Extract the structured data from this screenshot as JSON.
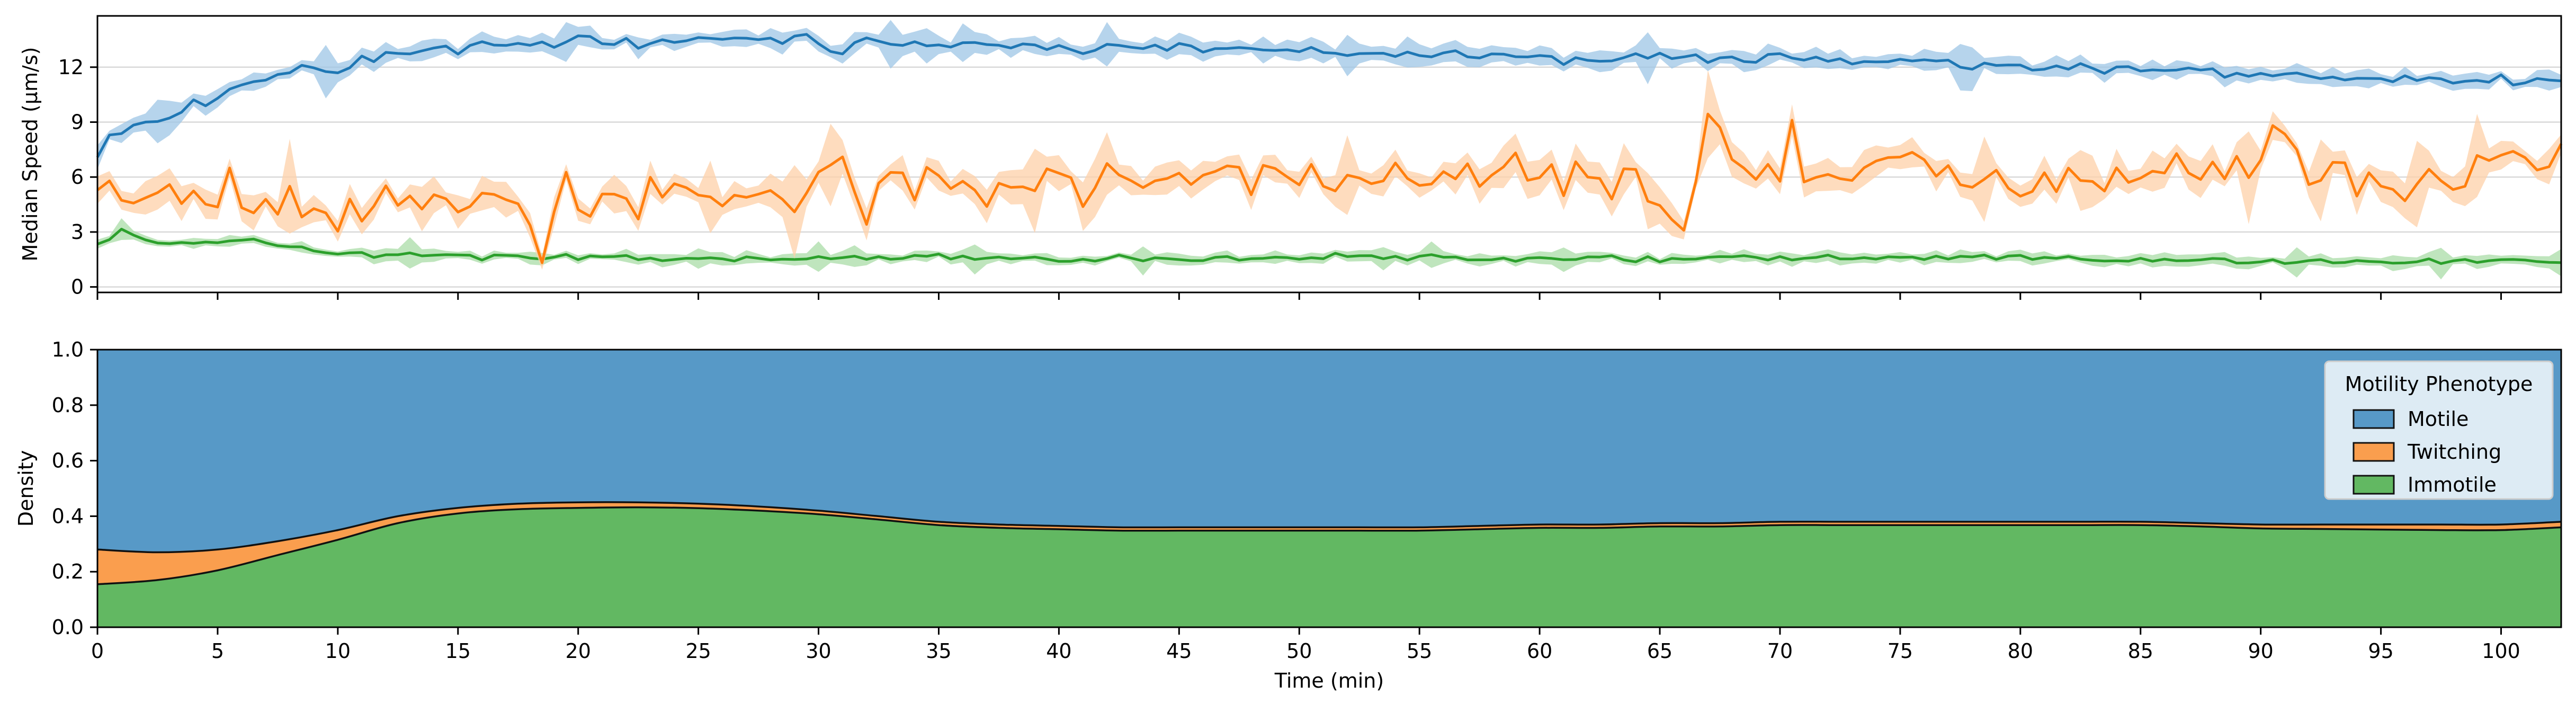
{
  "chart_data": [
    {
      "type": "line",
      "title": "",
      "xlabel": "",
      "ylabel": "Median Speed (µm/s)",
      "xlim": [
        0,
        102.5
      ],
      "ylim": [
        -0.3,
        14.8
      ],
      "xticks": [
        0,
        5,
        10,
        15,
        20,
        25,
        30,
        35,
        40,
        45,
        50,
        55,
        60,
        65,
        70,
        75,
        80,
        85,
        90,
        95,
        100
      ],
      "xticklabels_visible": false,
      "yticks": [
        0,
        3,
        6,
        9,
        12
      ],
      "yticklabels": [
        "0",
        "3",
        "6",
        "9",
        "12"
      ],
      "grid": "horizontal",
      "legend": "none",
      "series": [
        {
          "color": "#1f77b4",
          "band_color": "#9ec6e6",
          "band_halfwidth": 0.4,
          "knots_x": [
            0,
            0.5,
            1.5,
            2.5,
            4,
            5,
            6,
            7,
            8,
            9,
            10,
            11,
            12,
            13,
            14,
            15,
            17,
            19,
            20,
            22,
            24,
            25,
            27,
            29,
            29.5,
            30.5,
            32,
            34,
            36,
            38,
            40,
            42,
            45,
            48,
            50,
            52,
            55,
            58,
            60,
            62,
            65,
            68,
            70,
            72,
            75,
            78,
            80,
            82,
            85,
            88,
            90,
            92,
            95,
            98,
            100,
            102.5
          ],
          "knots_y": [
            7.2,
            8.2,
            8.9,
            9.2,
            9.8,
            10.4,
            11.0,
            11.5,
            11.9,
            12.1,
            11.8,
            12.3,
            12.6,
            12.8,
            13.0,
            13.1,
            13.3,
            13.3,
            13.4,
            13.4,
            13.5,
            13.4,
            13.5,
            13.5,
            13.8,
            12.8,
            13.2,
            13.2,
            13.2,
            13.1,
            13.1,
            13.1,
            13.1,
            12.9,
            12.9,
            12.8,
            12.8,
            12.6,
            12.6,
            12.5,
            12.6,
            12.4,
            12.5,
            12.3,
            12.3,
            12.1,
            12.0,
            11.9,
            11.8,
            11.7,
            11.5,
            11.5,
            11.4,
            11.3,
            11.2,
            11.3
          ],
          "noise_amp": 0.32,
          "seed": 11
        },
        {
          "color": "#ff7f0e",
          "band_color": "#fdd0a8",
          "band_halfwidth": 0.7,
          "knots_x": [
            0,
            1,
            2,
            4,
            6,
            7,
            8,
            9,
            10,
            11,
            12,
            13,
            14,
            15,
            16,
            17,
            18,
            18.5,
            19.5,
            20,
            21,
            22,
            23,
            24,
            25,
            26,
            27,
            28,
            29,
            30,
            31,
            32,
            33,
            34,
            35,
            36,
            38,
            39,
            40,
            41,
            42,
            43,
            44,
            46,
            48,
            50,
            52,
            54,
            56,
            58,
            60,
            62,
            64,
            65,
            66,
            67,
            68,
            70,
            70.5,
            71,
            72,
            74,
            75,
            76,
            78,
            80,
            82,
            84,
            86,
            88,
            90,
            91,
            92,
            94,
            96,
            98,
            100,
            101,
            102.5
          ],
          "knots_y": [
            5.7,
            5.2,
            5.3,
            5.2,
            4.9,
            4.6,
            4.8,
            4.4,
            3.2,
            4.8,
            5.5,
            4.6,
            5.0,
            4.2,
            4.7,
            4.9,
            3.4,
            2.0,
            5.6,
            3.8,
            4.5,
            4.5,
            5.2,
            5.6,
            5.2,
            5.8,
            5.2,
            5.6,
            4.8,
            5.6,
            6.4,
            4.2,
            5.8,
            5.5,
            6.0,
            6.3,
            5.2,
            5.8,
            6.6,
            5.0,
            6.8,
            5.6,
            6.3,
            5.9,
            6.4,
            5.2,
            6.1,
            5.7,
            6.3,
            6.2,
            5.9,
            6.0,
            6.3,
            4.6,
            3.2,
            9.9,
            6.2,
            6.4,
            8.6,
            6.1,
            6.0,
            5.8,
            7.4,
            6.6,
            5.8,
            5.6,
            5.7,
            5.8,
            6.5,
            6.2,
            6.9,
            7.6,
            6.3,
            6.1,
            5.5,
            6.1,
            6.8,
            7.3,
            6.6
          ],
          "noise_amp": 1.15,
          "seed": 23
        },
        {
          "color": "#2ca02c",
          "band_color": "#a9dca7",
          "band_halfwidth": 0.25,
          "knots_x": [
            0,
            0.5,
            1,
            1.5,
            2,
            3,
            4,
            5,
            6,
            7,
            8,
            9,
            10,
            12,
            15,
            20,
            25,
            30,
            35,
            40,
            45,
            50,
            55,
            60,
            65,
            70,
            75,
            80,
            85,
            90,
            95,
            100,
            102.5
          ],
          "knots_y": [
            2.4,
            2.7,
            3.2,
            2.7,
            2.6,
            2.4,
            2.5,
            2.5,
            2.6,
            2.5,
            2.2,
            2.0,
            1.9,
            1.8,
            1.7,
            1.6,
            1.5,
            1.6,
            1.6,
            1.5,
            1.5,
            1.6,
            1.6,
            1.6,
            1.6,
            1.7,
            1.6,
            1.6,
            1.5,
            1.4,
            1.4,
            1.4,
            1.4
          ],
          "noise_amp": 0.18,
          "seed": 37
        }
      ]
    },
    {
      "type": "area",
      "title": "",
      "xlabel": "Time (min)",
      "ylabel": "Density",
      "xlim": [
        0,
        102.5
      ],
      "ylim": [
        0,
        1
      ],
      "xticks": [
        0,
        5,
        10,
        15,
        20,
        25,
        30,
        35,
        40,
        45,
        50,
        55,
        60,
        65,
        70,
        75,
        80,
        85,
        90,
        95,
        100
      ],
      "xticklabels": [
        "0",
        "5",
        "10",
        "15",
        "20",
        "25",
        "30",
        "35",
        "40",
        "45",
        "50",
        "55",
        "60",
        "65",
        "70",
        "75",
        "80",
        "85",
        "90",
        "95",
        "100"
      ],
      "yticks": [
        0,
        0.2,
        0.4,
        0.6,
        0.8,
        1.0
      ],
      "yticklabels": [
        "0.0",
        "0.2",
        "0.4",
        "0.6",
        "0.8",
        "1.0"
      ],
      "legend_position": "top-right",
      "legend_title": "Motility Phenotype",
      "stacking": "fill",
      "x": [
        0,
        2.5,
        5,
        7.5,
        10,
        12.5,
        15,
        17.5,
        20,
        22.5,
        25,
        27.5,
        30,
        32.5,
        35,
        37.5,
        40,
        42.5,
        45,
        47.5,
        50,
        52.5,
        55,
        57.5,
        60,
        62.5,
        65,
        67.5,
        70,
        72.5,
        75,
        77.5,
        80,
        82.5,
        85,
        87.5,
        90,
        92.5,
        95,
        97.5,
        100,
        102.5
      ],
      "series": [
        {
          "name": "Motile",
          "color": "#5799c7",
          "values": [
            0.72,
            0.73,
            0.72,
            0.69,
            0.65,
            0.6,
            0.57,
            0.555,
            0.55,
            0.55,
            0.555,
            0.565,
            0.58,
            0.6,
            0.62,
            0.63,
            0.635,
            0.64,
            0.64,
            0.64,
            0.64,
            0.64,
            0.64,
            0.635,
            0.63,
            0.63,
            0.625,
            0.625,
            0.62,
            0.62,
            0.62,
            0.62,
            0.62,
            0.62,
            0.62,
            0.625,
            0.63,
            0.63,
            0.63,
            0.63,
            0.63,
            0.62
          ]
        },
        {
          "name": "Twitching",
          "color": "#fa9e4e",
          "values": [
            0.125,
            0.1,
            0.075,
            0.05,
            0.035,
            0.025,
            0.02,
            0.02,
            0.02,
            0.018,
            0.016,
            0.015,
            0.013,
            0.012,
            0.012,
            0.012,
            0.012,
            0.012,
            0.012,
            0.012,
            0.012,
            0.012,
            0.012,
            0.012,
            0.012,
            0.012,
            0.012,
            0.012,
            0.012,
            0.012,
            0.012,
            0.012,
            0.012,
            0.012,
            0.012,
            0.012,
            0.014,
            0.016,
            0.018,
            0.02,
            0.02,
            0.02
          ]
        },
        {
          "name": "Immotile",
          "color": "#62b862",
          "values": [
            0.155,
            0.17,
            0.205,
            0.26,
            0.315,
            0.375,
            0.41,
            0.425,
            0.43,
            0.432,
            0.429,
            0.42,
            0.407,
            0.388,
            0.368,
            0.358,
            0.353,
            0.348,
            0.348,
            0.348,
            0.348,
            0.348,
            0.348,
            0.353,
            0.358,
            0.358,
            0.363,
            0.363,
            0.368,
            0.368,
            0.368,
            0.368,
            0.368,
            0.368,
            0.368,
            0.363,
            0.356,
            0.354,
            0.352,
            0.35,
            0.35,
            0.36
          ]
        }
      ]
    }
  ]
}
